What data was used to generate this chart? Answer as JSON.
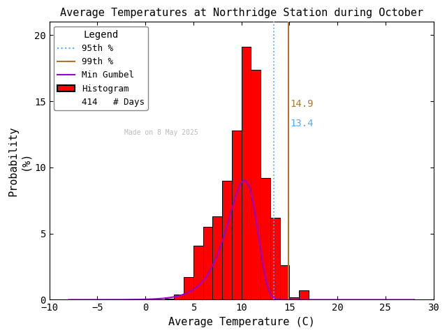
{
  "title": "Average Temperatures at Northridge Station during October",
  "xlabel": "Average Temperature (C)",
  "ylabel_top": "Probability",
  "ylabel_bot": "(%)",
  "xlim": [
    -10,
    30
  ],
  "ylim": [
    0,
    21
  ],
  "xticks": [
    -10,
    -5,
    0,
    5,
    10,
    15,
    20,
    25,
    30
  ],
  "yticks": [
    0,
    5,
    10,
    15,
    20
  ],
  "bin_left_edges": [
    2,
    3,
    4,
    5,
    6,
    7,
    8,
    9,
    10,
    11,
    12,
    13,
    14,
    15,
    16,
    17,
    18,
    19,
    20
  ],
  "bar_heights": [
    0.1,
    0.4,
    1.7,
    4.1,
    5.5,
    6.3,
    9.0,
    12.8,
    19.1,
    17.4,
    9.2,
    6.2,
    2.6,
    0.2,
    0.7,
    0.0,
    0.0,
    0.0,
    0.0
  ],
  "bar_color": "#ff0000",
  "bar_edgecolor": "#000000",
  "gumbel_color": "#9900cc",
  "gumbel_mu": 10.3,
  "gumbel_beta": 1.55,
  "gumbel_scale": 38.0,
  "pct95_val": 13.4,
  "pct99_val": 14.9,
  "pct95_color": "#55aaff",
  "pct99_color": "#aa7733",
  "pct95_label_color": "#55aaff",
  "pct99_label_color": "#aa7733",
  "n_days": 414,
  "watermark": "Made on 8 May 2025",
  "watermark_color": "#bbbbbb",
  "bg_color": "#ffffff",
  "legend_title": "Legend",
  "label_95": "95th %",
  "label_99": "99th %",
  "label_gumbel": "Min Gumbel",
  "label_hist": "Histogram",
  "label_days": "# Days",
  "text_14_9": "14.9",
  "text_13_4": "13.4"
}
